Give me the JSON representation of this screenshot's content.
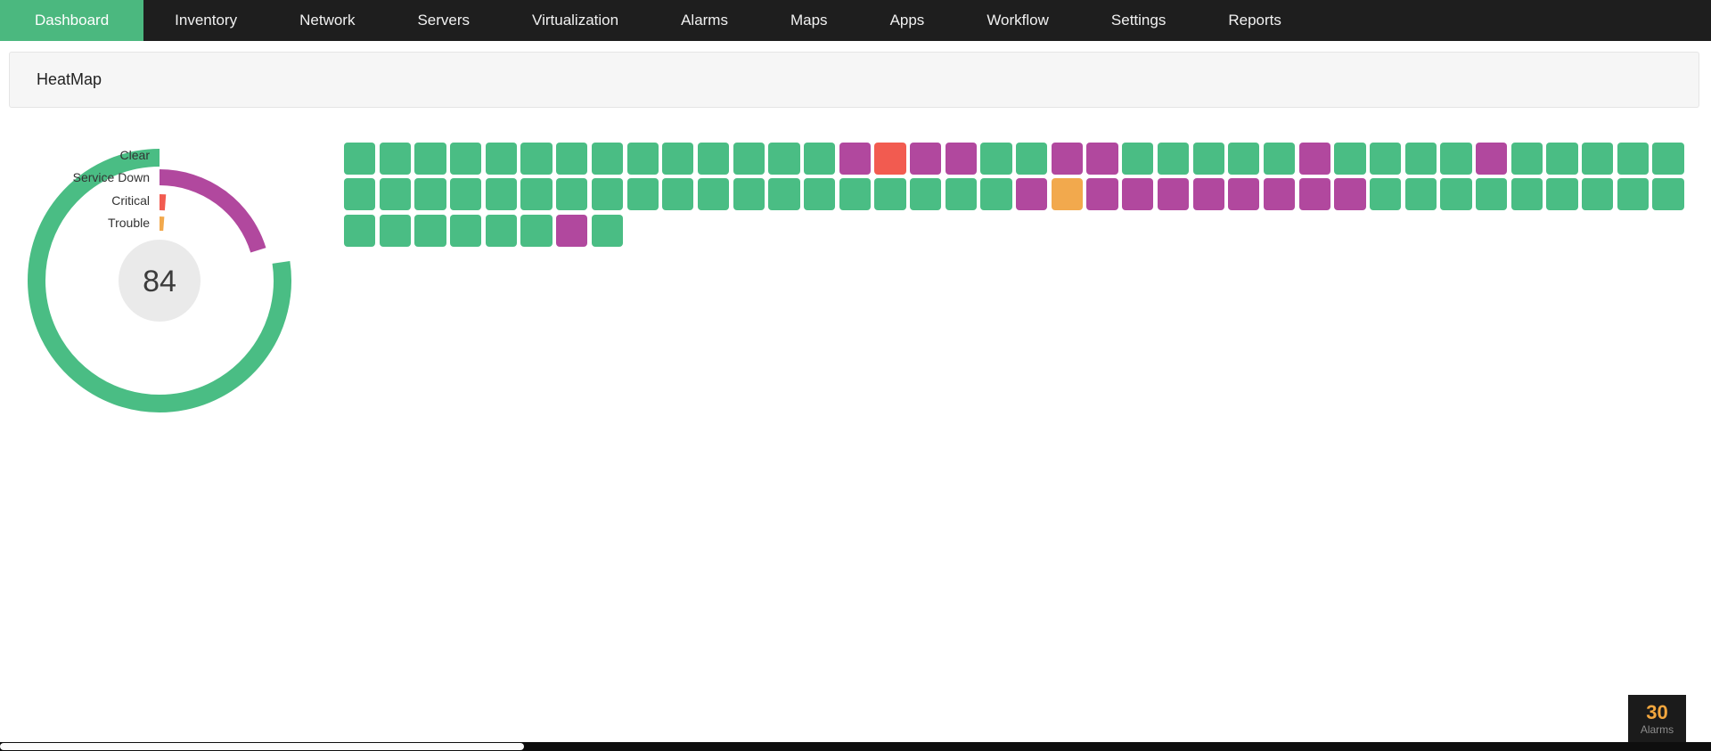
{
  "nav": {
    "active_color": "#4bb87f",
    "items": [
      {
        "label": "Dashboard",
        "active": true
      },
      {
        "label": "Inventory",
        "active": false
      },
      {
        "label": "Network",
        "active": false
      },
      {
        "label": "Servers",
        "active": false
      },
      {
        "label": "Virtualization",
        "active": false
      },
      {
        "label": "Alarms",
        "active": false
      },
      {
        "label": "Maps",
        "active": false
      },
      {
        "label": "Apps",
        "active": false
      },
      {
        "label": "Workflow",
        "active": false
      },
      {
        "label": "Settings",
        "active": false
      },
      {
        "label": "Reports",
        "active": false
      }
    ]
  },
  "panel": {
    "title": "HeatMap"
  },
  "chart_data": [
    {
      "type": "donut",
      "center_value": 84,
      "total": 84,
      "legend_position": "top-left",
      "segments": [
        {
          "label": "Clear",
          "value": 65,
          "color": "#4abd84"
        },
        {
          "label": "Service Down",
          "value": 17,
          "color": "#b1489e"
        },
        {
          "label": "Critical",
          "value": 1,
          "color": "#f25b50"
        },
        {
          "label": "Trouble",
          "value": 1,
          "color": "#f2a94d"
        }
      ]
    },
    {
      "type": "heatmap",
      "statuses": {
        "C": "Clear",
        "S": "Service Down",
        "R": "Critical",
        "T": "Trouble"
      },
      "colors": {
        "C": "#4abd84",
        "S": "#b1489e",
        "R": "#f25b50",
        "T": "#f2a94d"
      },
      "rows": [
        "CCCCCCCCCCCCCCSRSSCCSSCCCCCSCCCCSCCCCC",
        "CCCCCCCCCCCCCCCCCCCSTSSSSSSSSCCCCCCCCC",
        "CCCCCCSC"
      ]
    }
  ],
  "alarms_badge": {
    "count": "30",
    "label": "Alarms",
    "count_color": "#f2a63e"
  }
}
